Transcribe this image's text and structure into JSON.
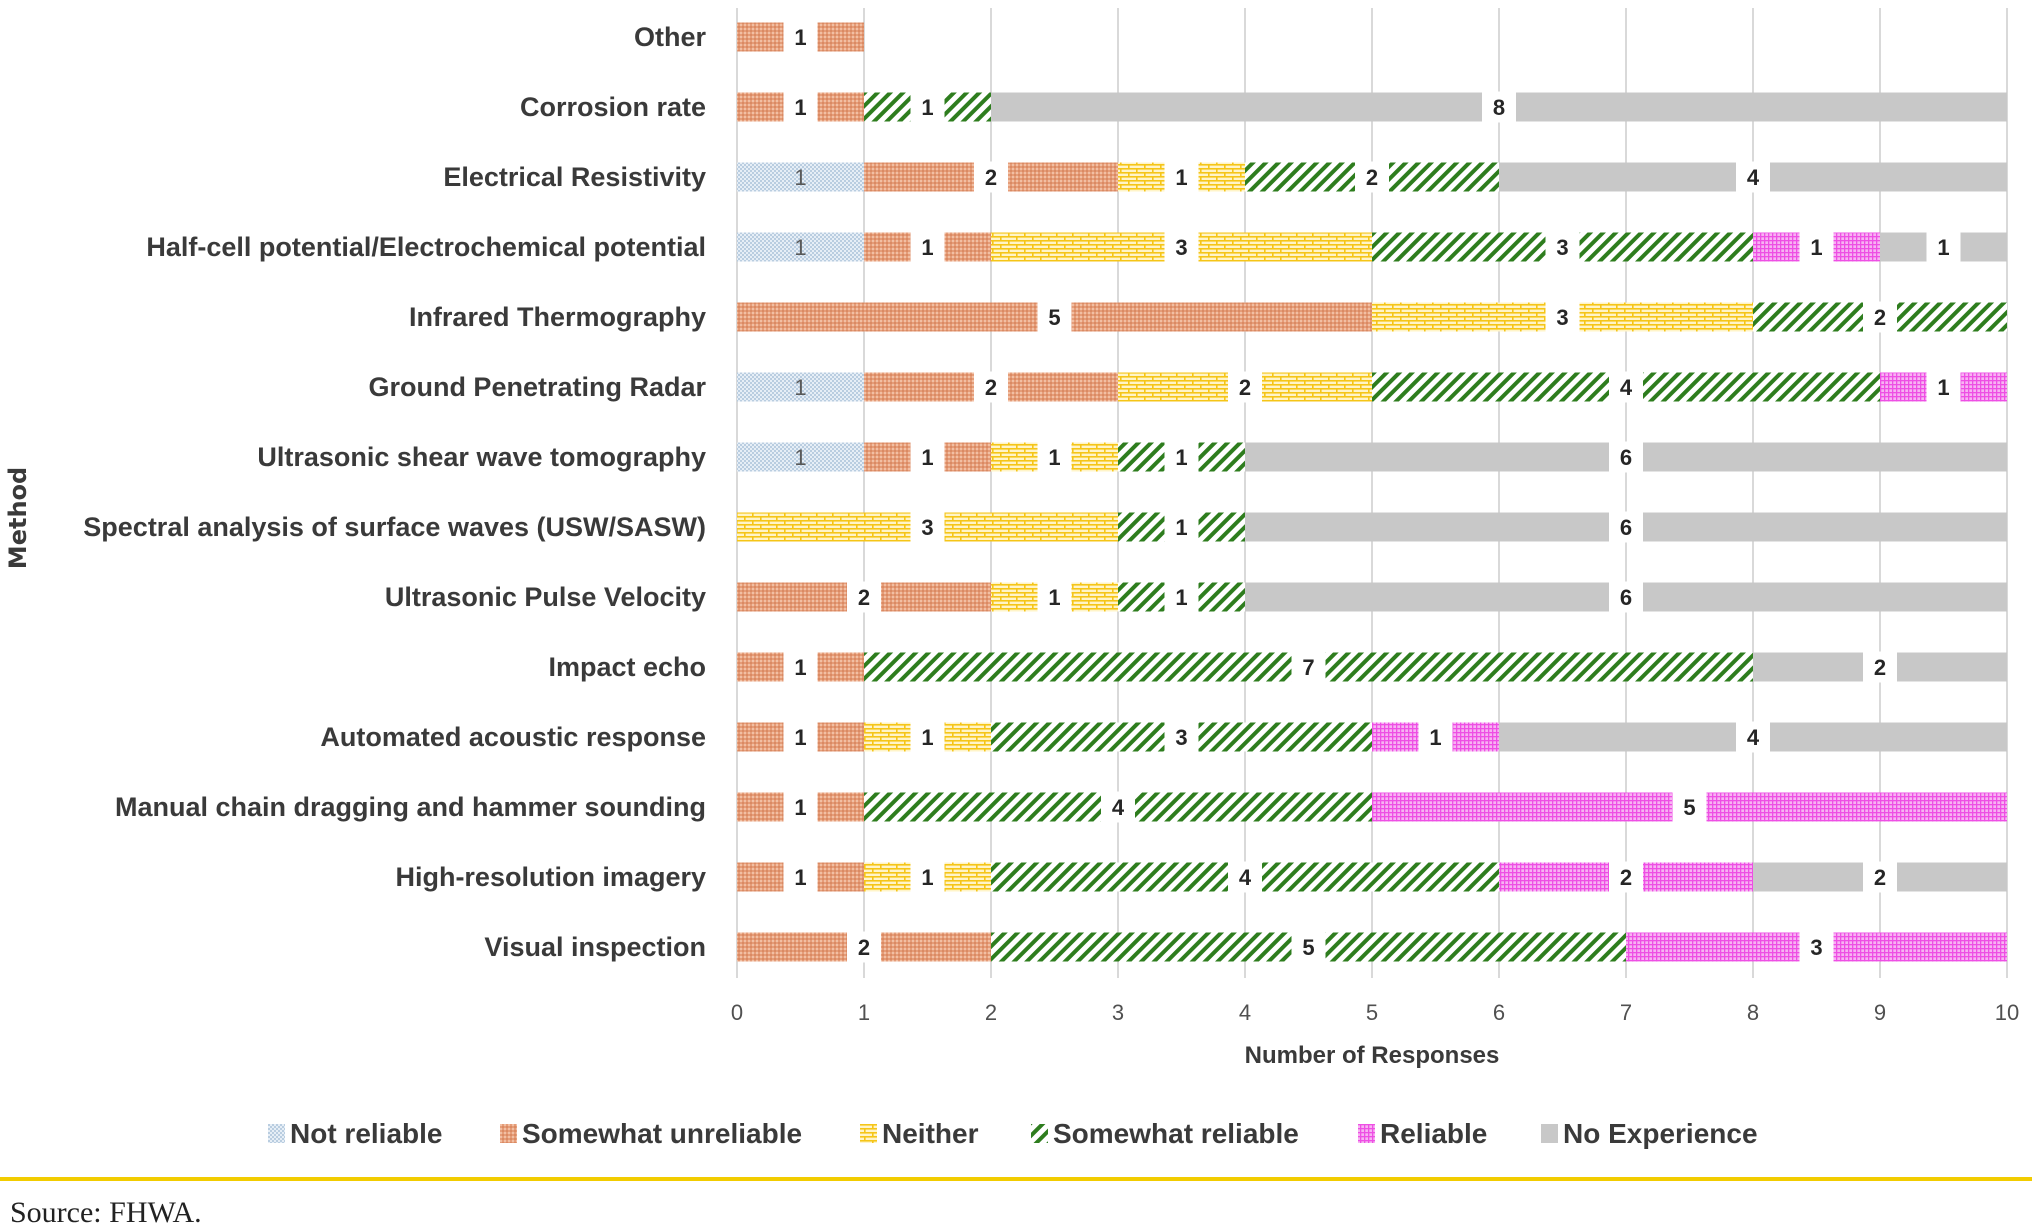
{
  "chart_data": {
    "type": "bar",
    "orientation": "horizontal",
    "stacked": true,
    "title": "",
    "xlabel": "Number of Responses",
    "ylabel": "Method",
    "xlim": [
      0,
      10
    ],
    "xticks": [
      0,
      1,
      2,
      3,
      4,
      5,
      6,
      7,
      8,
      9,
      10
    ],
    "grid": "vertical",
    "legend_position": "bottom",
    "categories": [
      "Other",
      "Corrosion rate",
      "Electrical Resistivity",
      "Half-cell potential/Electrochemical potential",
      "Infrared Thermography",
      "Ground Penetrating Radar",
      "Ultrasonic shear wave tomography",
      "Spectral analysis of surface waves (USW/SASW)",
      "Ultrasonic Pulse Velocity",
      "Impact echo",
      "Automated acoustic response",
      "Manual chain dragging and hammer sounding",
      "High-resolution imagery",
      "Visual inspection"
    ],
    "series": [
      {
        "name": "Not reliable",
        "key": "not_reliable",
        "color": "#BDD7EE",
        "pattern": "dots",
        "values": [
          0,
          0,
          1,
          1,
          0,
          1,
          1,
          0,
          0,
          0,
          0,
          0,
          0,
          0
        ]
      },
      {
        "name": "Somewhat unreliable",
        "key": "somewhat_unreliable",
        "color": "#E9A47E",
        "pattern": "dense-dots",
        "values": [
          1,
          1,
          2,
          1,
          5,
          2,
          1,
          0,
          2,
          1,
          1,
          1,
          1,
          2
        ]
      },
      {
        "name": "Neither",
        "key": "neither",
        "color": "#F5C518",
        "pattern": "bricks",
        "values": [
          0,
          0,
          1,
          3,
          3,
          2,
          1,
          3,
          1,
          0,
          1,
          0,
          1,
          0
        ]
      },
      {
        "name": "Somewhat reliable",
        "key": "somewhat_reliable",
        "color": "#2E7D1E",
        "pattern": "diagonal",
        "values": [
          0,
          1,
          2,
          3,
          2,
          4,
          1,
          1,
          1,
          7,
          3,
          4,
          4,
          5
        ]
      },
      {
        "name": "Reliable",
        "key": "reliable",
        "color": "#F060E8",
        "pattern": "grid",
        "values": [
          0,
          0,
          0,
          1,
          0,
          1,
          0,
          0,
          0,
          0,
          1,
          5,
          2,
          3
        ]
      },
      {
        "name": "No Experience",
        "key": "no_experience",
        "color": "#C8C8C8",
        "pattern": "solid",
        "values": [
          0,
          8,
          4,
          1,
          0,
          0,
          6,
          6,
          6,
          2,
          4,
          0,
          2,
          0
        ]
      }
    ]
  },
  "footer": {
    "source": "Source: FHWA."
  }
}
